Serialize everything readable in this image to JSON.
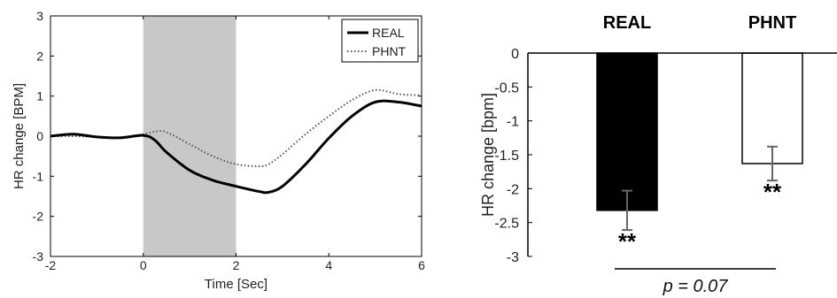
{
  "chart_data": [
    {
      "type": "line",
      "xlabel": "Time [Sec]",
      "ylabel": "HR change [BPM]",
      "xlim": [
        -2,
        6
      ],
      "ylim": [
        -3,
        3
      ],
      "xticks": [
        "-2",
        "0",
        "2",
        "4",
        "6"
      ],
      "yticks": [
        "3",
        "2",
        "1",
        "0",
        "-1",
        "-2",
        "-3"
      ],
      "shaded_region": [
        0,
        2
      ],
      "legend_position": "top-right",
      "series": [
        {
          "name": "REAL",
          "style": "solid",
          "color": "#000000",
          "x": [
            -2,
            -1.5,
            -1,
            -0.5,
            0,
            0.25,
            0.5,
            1,
            1.5,
            2,
            2.5,
            2.7,
            3,
            3.5,
            4,
            4.5,
            5,
            5.5,
            6
          ],
          "y": [
            0.0,
            0.05,
            -0.02,
            -0.04,
            0.02,
            -0.1,
            -0.4,
            -0.85,
            -1.1,
            -1.25,
            -1.38,
            -1.4,
            -1.25,
            -0.7,
            -0.05,
            0.5,
            0.85,
            0.85,
            0.75
          ]
        },
        {
          "name": "PHNT",
          "style": "dotted",
          "color": "#555555",
          "x": [
            -2,
            -1.5,
            -1,
            -0.5,
            0,
            0.3,
            0.5,
            1,
            1.5,
            2,
            2.5,
            2.7,
            3,
            3.5,
            4,
            4.5,
            5,
            5.5,
            6
          ],
          "y": [
            0.0,
            0.0,
            -0.02,
            -0.03,
            0.05,
            0.12,
            0.1,
            -0.2,
            -0.5,
            -0.7,
            -0.75,
            -0.7,
            -0.45,
            0.05,
            0.5,
            0.9,
            1.15,
            1.05,
            1.02
          ]
        }
      ],
      "legend": [
        "REAL",
        "PHNT"
      ]
    },
    {
      "type": "bar",
      "ylabel": "HR change [bpm]",
      "ylim": [
        -3,
        0
      ],
      "yticks": [
        "0",
        "-0.5",
        "-1",
        "-1.5",
        "-2",
        "-2.5",
        "-3"
      ],
      "categories": [
        "REAL",
        "PHNT"
      ],
      "values": [
        -2.32,
        -1.63
      ],
      "errors": [
        0.29,
        0.25
      ],
      "bar_colors": [
        "#000000",
        "#ffffff"
      ],
      "significance": [
        "**",
        "**"
      ],
      "comparison_label": "p = 0.07"
    }
  ]
}
